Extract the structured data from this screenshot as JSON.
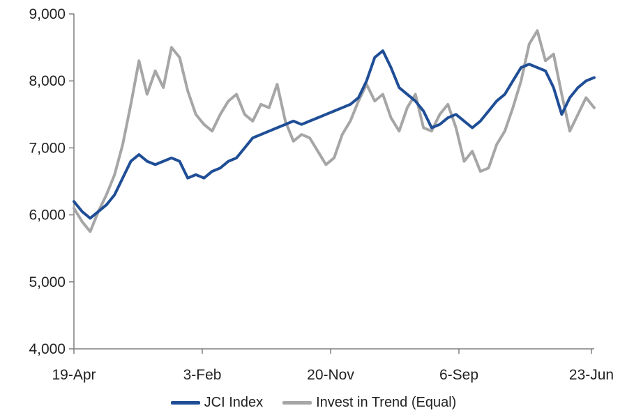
{
  "chart_data": {
    "type": "line",
    "title": "",
    "xlabel": "",
    "ylabel": "",
    "ylim": [
      4000,
      9000
    ],
    "yticks": [
      4000,
      5000,
      6000,
      7000,
      8000,
      9000
    ],
    "ytick_labels": [
      "4,000",
      "5,000",
      "6,000",
      "7,000",
      "8,000",
      "9,000"
    ],
    "xtick_labels": [
      "19-Apr",
      "3-Feb",
      "20-Nov",
      "6-Sep",
      "23-Jun"
    ],
    "grid": false,
    "legend_position": "bottom",
    "series": [
      {
        "name": "JCI Index",
        "color": "#1f4e96",
        "values": [
          6200,
          6050,
          5950,
          6050,
          6150,
          6300,
          6550,
          6800,
          6900,
          6800,
          6750,
          6800,
          6850,
          6800,
          6550,
          6600,
          6550,
          6650,
          6700,
          6800,
          6850,
          7000,
          7150,
          7200,
          7250,
          7300,
          7350,
          7400,
          7350,
          7400,
          7450,
          7500,
          7550,
          7600,
          7650,
          7750,
          8000,
          8350,
          8450,
          8200,
          7900,
          7800,
          7700,
          7550,
          7300,
          7350,
          7450,
          7500,
          7400,
          7300,
          7400,
          7550,
          7700,
          7800,
          8000,
          8200,
          8250,
          8200,
          8150,
          7900,
          7500,
          7750,
          7900,
          8000,
          8050
        ]
      },
      {
        "name": "Invest in Trend (Equal)",
        "color": "#a6a6a6",
        "values": [
          6100,
          5900,
          5750,
          6050,
          6300,
          6600,
          7050,
          7650,
          8300,
          7800,
          8150,
          7900,
          8500,
          8350,
          7850,
          7500,
          7350,
          7250,
          7500,
          7700,
          7800,
          7500,
          7400,
          7650,
          7600,
          7950,
          7400,
          7100,
          7200,
          7150,
          6950,
          6750,
          6850,
          7200,
          7400,
          7700,
          7950,
          7700,
          7800,
          7450,
          7250,
          7600,
          7800,
          7300,
          7250,
          7500,
          7650,
          7300,
          6800,
          6950,
          6650,
          6700,
          7050,
          7250,
          7600,
          8000,
          8550,
          8750,
          8300,
          8400,
          7800,
          7250,
          7500,
          7750,
          7600
        ]
      }
    ]
  }
}
